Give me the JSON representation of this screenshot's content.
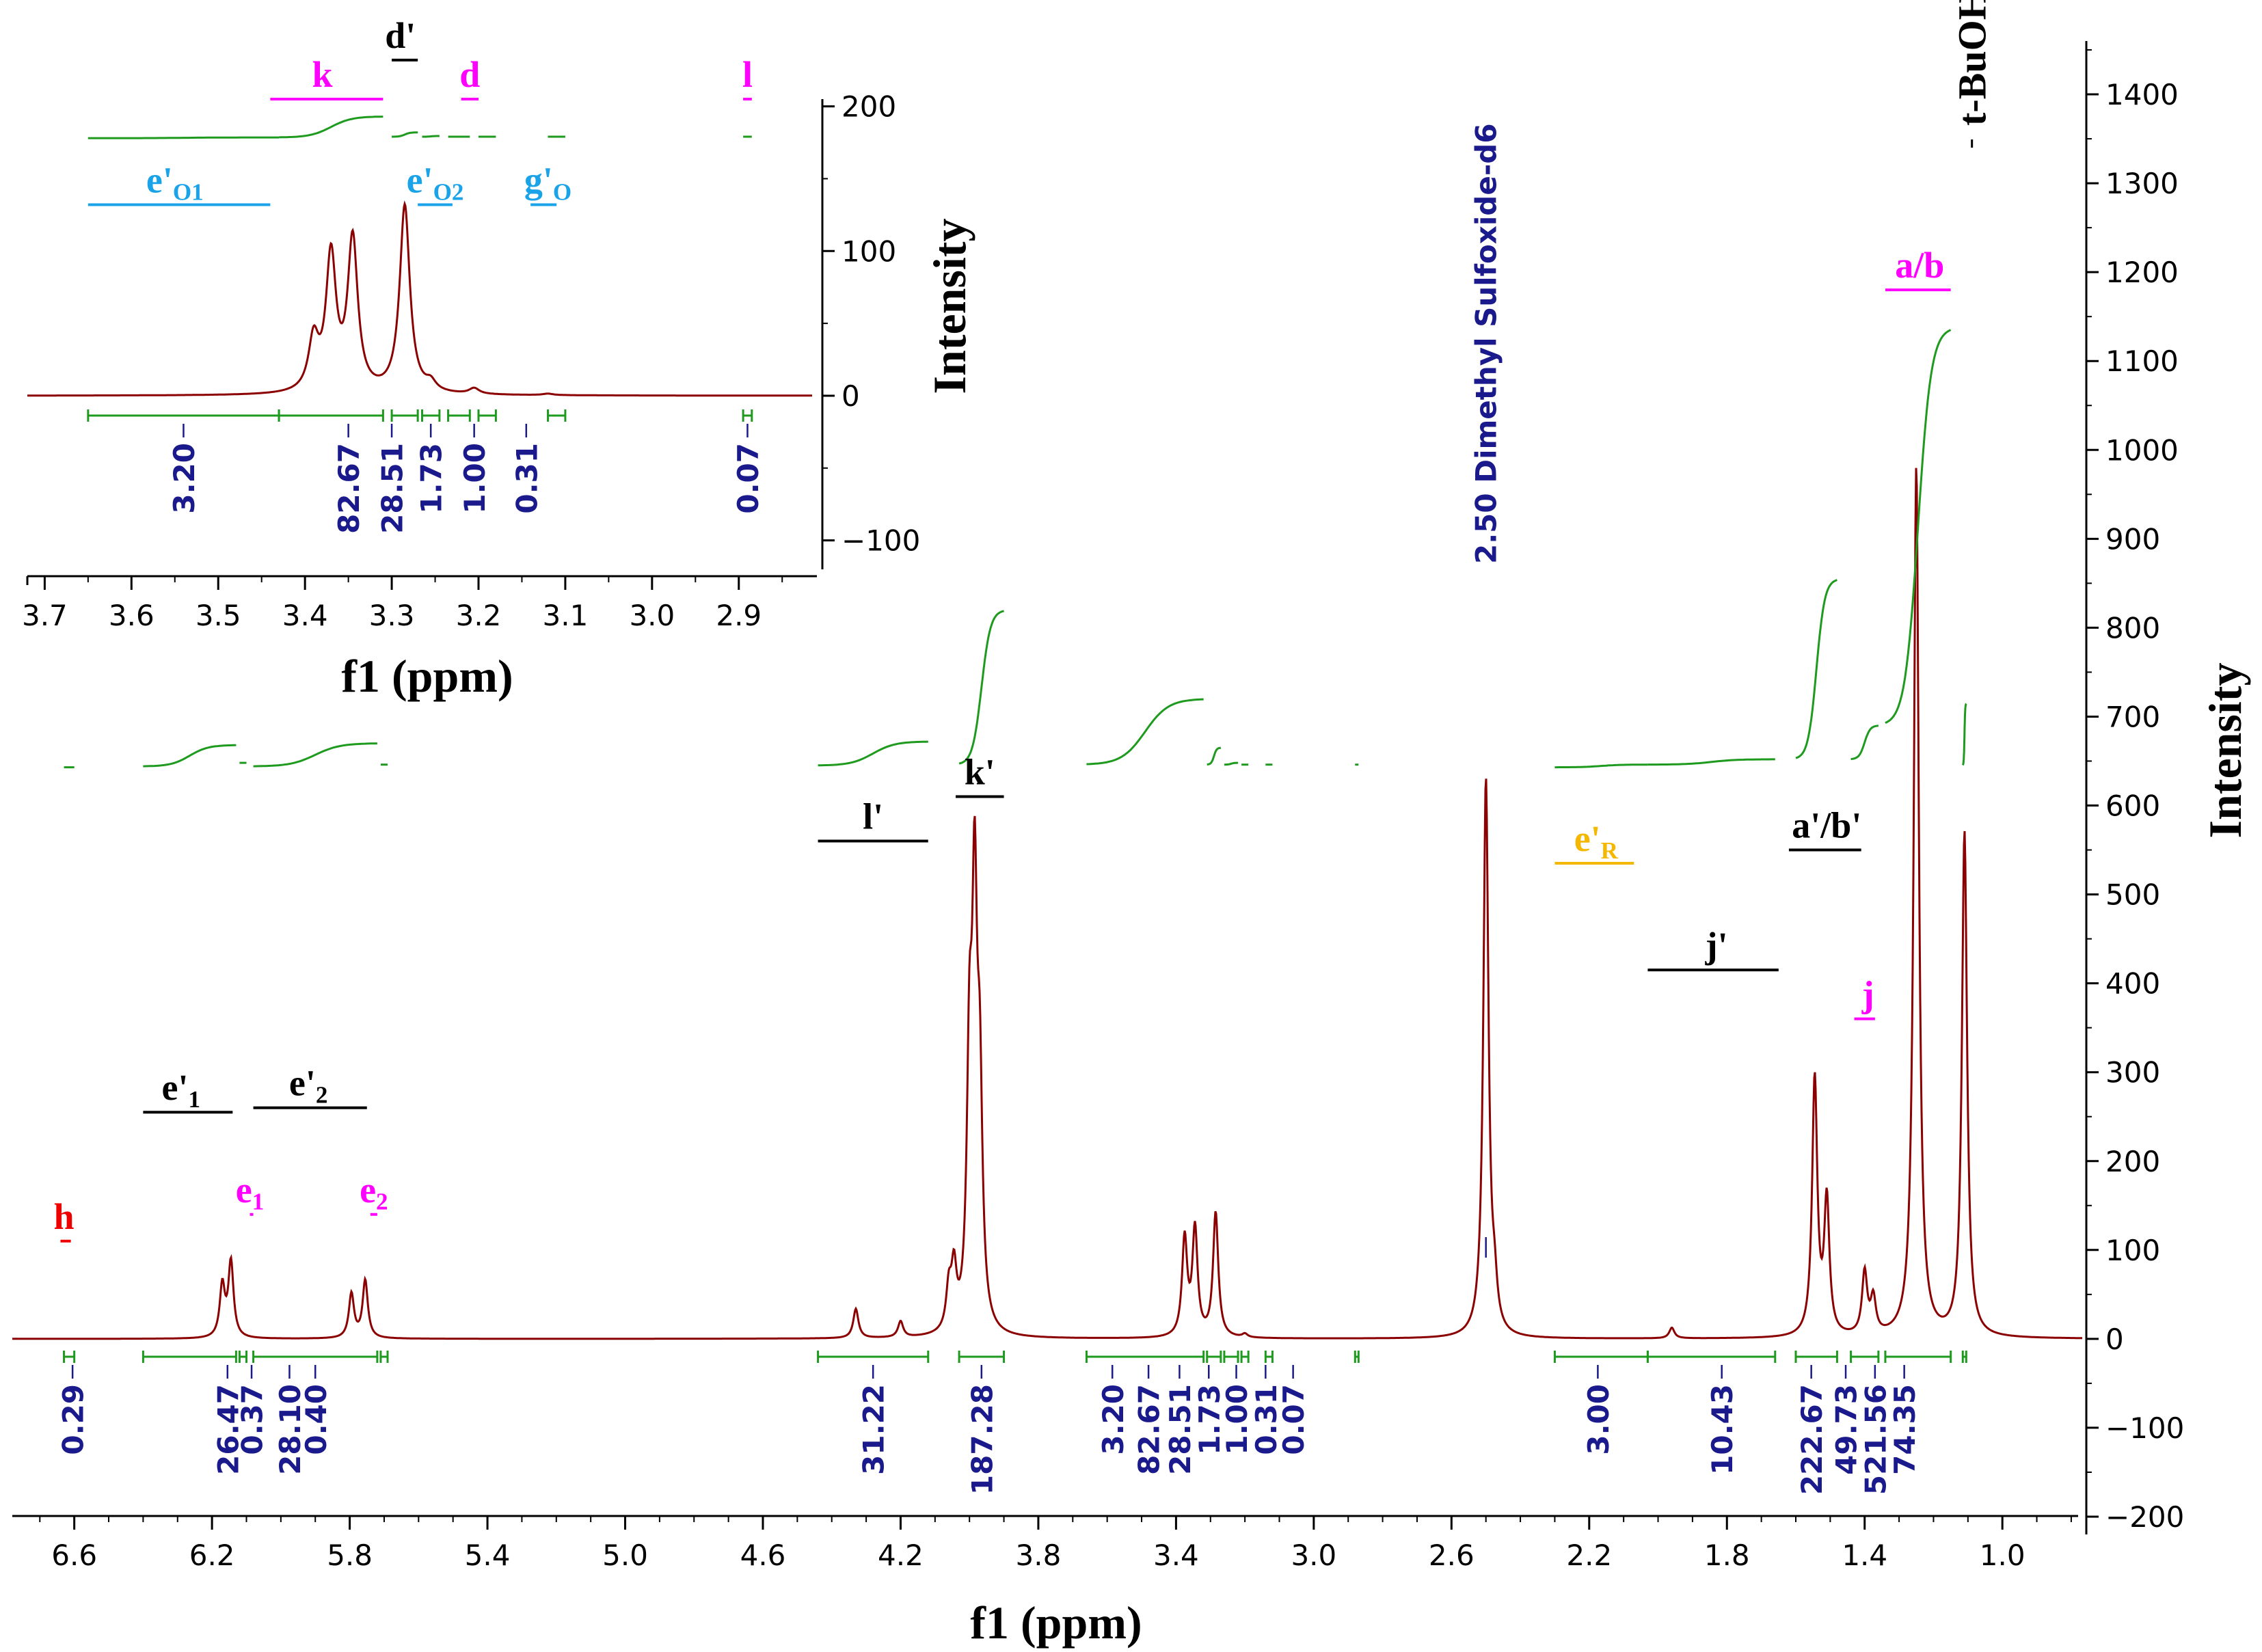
{
  "chart_data": [
    {
      "id": "main",
      "type": "line",
      "xlabel": "f1 (ppm)",
      "ylabel": "Intensity",
      "xlim": [
        6.78,
        0.78
      ],
      "ylim": [
        -220,
        1460
      ],
      "x_ticks": [
        6.6,
        6.2,
        5.8,
        5.4,
        5.0,
        4.6,
        4.2,
        3.8,
        3.4,
        3.0,
        2.6,
        2.2,
        1.8,
        1.4,
        1.0
      ],
      "x_tick_labels": [
        "6.6",
        "6.2",
        "5.8",
        "5.4",
        "5.0",
        "4.6",
        "4.2",
        "3.8",
        "3.4",
        "3.0",
        "2.6",
        "2.2",
        "1.8",
        "1.4",
        "1.0"
      ],
      "y_ticks": [
        -200,
        -100,
        0,
        100,
        200,
        300,
        400,
        500,
        600,
        700,
        800,
        900,
        1000,
        1100,
        1200,
        1300,
        1400
      ],
      "y_tick_labels": [
        "−200",
        "−100",
        "0",
        "100",
        "200",
        "300",
        "400",
        "500",
        "600",
        "700",
        "800",
        "900",
        "1000",
        "1100",
        "1200",
        "1300",
        "1400"
      ],
      "peaks": [
        {
          "x": 6.17,
          "y": 58
        },
        {
          "x": 6.145,
          "y": 85
        },
        {
          "x": 5.795,
          "y": 50
        },
        {
          "x": 5.755,
          "y": 65
        },
        {
          "x": 4.33,
          "y": 33
        },
        {
          "x": 4.2,
          "y": 18
        },
        {
          "x": 4.06,
          "y": 45
        },
        {
          "x": 4.045,
          "y": 65
        },
        {
          "x": 4.0,
          "y": 280
        },
        {
          "x": 3.985,
          "y": 450
        },
        {
          "x": 3.97,
          "y": 240
        },
        {
          "x": 3.375,
          "y": 110
        },
        {
          "x": 3.345,
          "y": 120
        },
        {
          "x": 3.285,
          "y": 140
        },
        {
          "x": 3.2,
          "y": 4
        },
        {
          "x": 2.5,
          "y": 628
        },
        {
          "x": 2.475,
          "y": 40
        },
        {
          "x": 1.96,
          "y": 12
        },
        {
          "x": 1.545,
          "y": 290
        },
        {
          "x": 1.51,
          "y": 150
        },
        {
          "x": 1.4,
          "y": 70
        },
        {
          "x": 1.375,
          "y": 40
        },
        {
          "x": 1.25,
          "y": 980
        },
        {
          "x": 1.11,
          "y": 568
        }
      ],
      "integral_curves": [
        {
          "from": 6.63,
          "to": 6.6,
          "start": 643,
          "end": 643
        },
        {
          "from": 6.4,
          "to": 6.13,
          "start": 644,
          "end": 668
        },
        {
          "from": 6.12,
          "to": 6.1,
          "start": 648,
          "end": 648
        },
        {
          "from": 6.08,
          "to": 5.72,
          "start": 644,
          "end": 670
        },
        {
          "from": 5.71,
          "to": 5.69,
          "start": 646,
          "end": 646
        },
        {
          "from": 4.44,
          "to": 4.12,
          "start": 645,
          "end": 672
        },
        {
          "from": 4.03,
          "to": 3.9,
          "start": 646,
          "end": 820
        },
        {
          "from": 3.66,
          "to": 3.32,
          "start": 646,
          "end": 720
        },
        {
          "from": 3.31,
          "to": 3.27,
          "start": 646,
          "end": 665
        },
        {
          "from": 3.26,
          "to": 3.22,
          "start": 646,
          "end": 648
        },
        {
          "from": 3.21,
          "to": 3.19,
          "start": 646,
          "end": 646
        },
        {
          "from": 3.14,
          "to": 3.12,
          "start": 646,
          "end": 646
        },
        {
          "from": 2.88,
          "to": 2.87,
          "start": 646,
          "end": 646
        },
        {
          "from": 2.3,
          "to": 2.03,
          "start": 643,
          "end": 646
        },
        {
          "from": 2.03,
          "to": 1.66,
          "start": 646,
          "end": 652
        },
        {
          "from": 1.6,
          "to": 1.48,
          "start": 652,
          "end": 855
        },
        {
          "from": 1.44,
          "to": 1.36,
          "start": 652,
          "end": 690
        },
        {
          "from": 1.34,
          "to": 1.15,
          "start": 690,
          "end": 1138
        },
        {
          "from": 1.115,
          "to": 1.105,
          "start": 645,
          "end": 715
        }
      ],
      "integral_labels": [
        {
          "x": 6.605,
          "text": "0.29"
        },
        {
          "x": 6.155,
          "text": "26.47"
        },
        {
          "x": 6.085,
          "text": "0.37"
        },
        {
          "x": 5.975,
          "text": "28.10"
        },
        {
          "x": 5.9,
          "text": "0.40"
        },
        {
          "x": 4.28,
          "text": "31.22"
        },
        {
          "x": 3.965,
          "text": "187.28"
        },
        {
          "x": 3.585,
          "text": "3.20"
        },
        {
          "x": 3.48,
          "text": "82.67"
        },
        {
          "x": 3.39,
          "text": "28.51"
        },
        {
          "x": 3.305,
          "text": "1.73"
        },
        {
          "x": 3.225,
          "text": "1.00"
        },
        {
          "x": 3.14,
          "text": "0.31"
        },
        {
          "x": 3.06,
          "text": "0.07"
        },
        {
          "x": 2.175,
          "text": "3.00"
        },
        {
          "x": 1.815,
          "text": "10.43"
        },
        {
          "x": 1.555,
          "text": "222.67"
        },
        {
          "x": 1.455,
          "text": "49.73"
        },
        {
          "x": 1.37,
          "text": "521.56"
        },
        {
          "x": 1.285,
          "text": "74.35"
        }
      ],
      "peak_picks": [
        {
          "x": 2.5,
          "text": "2.50 Dimethyl Sulfoxide-d6"
        }
      ],
      "assignments": [
        {
          "text": "h",
          "sub": "",
          "x": 6.63,
          "x0": 6.64,
          "x1": 6.61,
          "y": 110,
          "color": "#ee0000"
        },
        {
          "text": "e'",
          "sub": "1",
          "x": 6.29,
          "x0": 6.4,
          "x1": 6.14,
          "y": 255,
          "color": "#000000"
        },
        {
          "text": "e",
          "sub": "1",
          "x": 6.09,
          "x0": 6.09,
          "x1": 6.08,
          "y": 140,
          "color": "#ff00ff"
        },
        {
          "text": "e'",
          "sub": "2",
          "x": 5.92,
          "x0": 6.08,
          "x1": 5.75,
          "y": 260,
          "color": "#000000"
        },
        {
          "text": "e",
          "sub": "2",
          "x": 5.73,
          "x0": 5.74,
          "x1": 5.72,
          "y": 140,
          "color": "#ff00ff"
        },
        {
          "text": "l'",
          "sub": "",
          "x": 4.28,
          "x0": 4.44,
          "x1": 4.12,
          "y": 560,
          "color": "#000000"
        },
        {
          "text": "k'",
          "sub": "",
          "x": 3.97,
          "x0": 4.04,
          "x1": 3.9,
          "y": 610,
          "color": "#000000"
        },
        {
          "text": "e'",
          "sub": "R",
          "x": 2.18,
          "x0": 2.3,
          "x1": 2.07,
          "y": 535,
          "color": "#f5b800"
        },
        {
          "text": "j'",
          "sub": "",
          "x": 1.83,
          "x0": 2.03,
          "x1": 1.65,
          "y": 415,
          "color": "#000000"
        },
        {
          "text": "a'/b'",
          "sub": "",
          "x": 1.51,
          "x0": 1.62,
          "x1": 1.41,
          "y": 550,
          "color": "#000000"
        },
        {
          "text": "j",
          "sub": "",
          "x": 1.39,
          "x0": 1.43,
          "x1": 1.37,
          "y": 360,
          "color": "#ff00ff"
        },
        {
          "text": "a/b",
          "sub": "",
          "x": 1.24,
          "x0": 1.34,
          "x1": 1.15,
          "y": 1180,
          "color": "#ff00ff"
        }
      ]
    },
    {
      "id": "inset",
      "type": "line",
      "xlabel": "f1 (ppm)",
      "ylabel": "Intensity",
      "xlim": [
        3.72,
        2.81
      ],
      "ylim": [
        -120,
        205
      ],
      "x_ticks": [
        3.7,
        3.6,
        3.5,
        3.4,
        3.3,
        3.2,
        3.1,
        3.0,
        2.9
      ],
      "x_tick_labels": [
        "3.7",
        "3.6",
        "3.5",
        "3.4",
        "3.3",
        "3.2",
        "3.1",
        "3.0",
        "2.9"
      ],
      "y_ticks": [
        -100,
        0,
        100,
        200
      ],
      "y_tick_labels": [
        "−100",
        "0",
        "100",
        "200"
      ],
      "peaks": [
        {
          "x": 3.39,
          "y": 35
        },
        {
          "x": 3.37,
          "y": 93
        },
        {
          "x": 3.345,
          "y": 105
        },
        {
          "x": 3.285,
          "y": 130
        },
        {
          "x": 3.255,
          "y": 6
        },
        {
          "x": 3.205,
          "y": 4
        },
        {
          "x": 3.12,
          "y": 1
        }
      ],
      "integral_curves": [
        {
          "from": 3.65,
          "to": 3.43,
          "start": 178,
          "end": 178.5
        },
        {
          "from": 3.43,
          "to": 3.31,
          "start": 178.5,
          "end": 193
        },
        {
          "from": 3.3,
          "to": 3.27,
          "start": 179,
          "end": 182
        },
        {
          "from": 3.265,
          "to": 3.245,
          "start": 179,
          "end": 179.5
        },
        {
          "from": 3.235,
          "to": 3.21,
          "start": 179,
          "end": 179
        },
        {
          "from": 3.2,
          "to": 3.18,
          "start": 179,
          "end": 179
        },
        {
          "from": 3.12,
          "to": 3.1,
          "start": 179,
          "end": 179
        },
        {
          "from": 2.895,
          "to": 2.885,
          "start": 179,
          "end": 179
        }
      ],
      "integral_labels": [
        {
          "x": 3.54,
          "text": "3.20"
        },
        {
          "x": 3.35,
          "text": "82.67"
        },
        {
          "x": 3.3,
          "text": "28.51"
        },
        {
          "x": 3.255,
          "text": "1.73"
        },
        {
          "x": 3.205,
          "text": "1.00"
        },
        {
          "x": 3.145,
          "text": "0.31"
        },
        {
          "x": 2.89,
          "text": "0.07"
        }
      ],
      "assignments": [
        {
          "text": "k",
          "sub": "",
          "x": 3.38,
          "x0": 3.44,
          "x1": 3.31,
          "y": 205,
          "color": "#ff00ff"
        },
        {
          "text": "d'",
          "sub": "",
          "x": 3.29,
          "x0": 3.3,
          "x1": 3.27,
          "y": 232,
          "color": "#000000"
        },
        {
          "text": "d",
          "sub": "",
          "x": 3.21,
          "x0": 3.22,
          "x1": 3.2,
          "y": 205,
          "color": "#ff00ff"
        },
        {
          "text": "l",
          "sub": "",
          "x": 2.89,
          "x0": 2.895,
          "x1": 2.885,
          "y": 205,
          "color": "#ff00ff"
        },
        {
          "text": "e'",
          "sub": "O1",
          "x": 3.55,
          "x0": 3.65,
          "x1": 3.44,
          "y": 132,
          "color": "#1aa3e8"
        },
        {
          "text": "e'",
          "sub": "O2",
          "x": 3.25,
          "x0": 3.27,
          "x1": 3.23,
          "y": 132,
          "color": "#1aa3e8"
        },
        {
          "text": "g'",
          "sub": "O",
          "x": 3.12,
          "x0": 3.14,
          "x1": 3.11,
          "y": 132,
          "color": "#1aa3e8"
        }
      ]
    }
  ],
  "solvent_label": {
    "text": "t-BuOH",
    "x": 1.14,
    "y": 1380,
    "color": "#000000"
  },
  "colors": {
    "spectrum": "#8b0000",
    "integral": "#1e9a1e",
    "integral_bar": "#1e9a1e",
    "integral_text": "#1a1a8c",
    "axis": "#000000"
  }
}
